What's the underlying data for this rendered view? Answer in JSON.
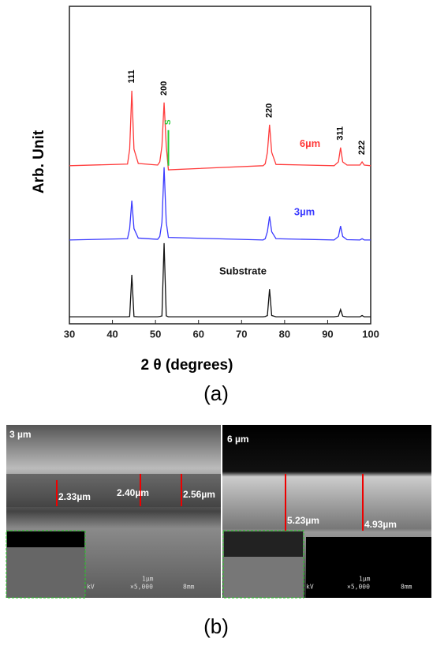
{
  "chart_data": {
    "type": "line",
    "x_label": "2 θ (degrees)",
    "y_label": "Arb. Unit",
    "panel_label": "(a)",
    "xlim": [
      30,
      100
    ],
    "xticks": [
      30,
      40,
      50,
      60,
      70,
      80,
      90,
      100
    ],
    "ylim": [
      0,
      100
    ],
    "x": [
      30,
      43.5,
      44,
      44.5,
      45,
      46,
      50.5,
      51,
      51.5,
      52,
      52.5,
      53,
      75,
      75.5,
      76,
      76.5,
      77,
      78,
      91.5,
      92.5,
      93,
      93.5,
      94.5,
      97.5,
      98,
      98.5,
      100
    ],
    "series": [
      {
        "name": "6µm",
        "color": "#ff3b3b",
        "values": [
          49.8,
          50.3,
          55,
          73.4,
          55,
          50.5,
          50,
          51,
          56,
          69.7,
          56,
          48.5,
          49.8,
          50.4,
          54,
          62.7,
          54,
          50.2,
          49.8,
          51,
          55.5,
          51,
          50,
          50,
          51,
          50,
          49.8
        ]
      },
      {
        "name": "3µm",
        "color": "#3a3aff",
        "values": [
          26.4,
          26.8,
          30,
          38.8,
          30,
          27,
          26.6,
          27.5,
          32,
          49.3,
          32,
          27.2,
          26.4,
          26.8,
          29,
          33.8,
          29,
          26.8,
          26.4,
          27.5,
          30.8,
          27.5,
          26.5,
          26.4,
          26.8,
          26.4,
          26.4
        ]
      },
      {
        "name": "Substrate",
        "color": "#111111",
        "values": [
          2.2,
          2.2,
          2.3,
          15.4,
          2.3,
          2.2,
          2.2,
          2.3,
          2.5,
          25.4,
          2.5,
          2.2,
          2.2,
          2.3,
          2.6,
          10.9,
          2.6,
          2.2,
          2.2,
          2.4,
          4.5,
          2.4,
          2.2,
          2.2,
          2.6,
          2.2,
          2.2
        ]
      }
    ],
    "peak_labels": [
      {
        "text": "111",
        "x": 44.5
      },
      {
        "text": "200",
        "x": 52
      },
      {
        "text": "220",
        "x": 76.5
      },
      {
        "text": "311",
        "x": 93
      },
      {
        "text": "222",
        "x": 98
      }
    ],
    "marker": {
      "text": "S",
      "x": 53,
      "color": "#22cc33"
    }
  },
  "figure_b": {
    "panel_label": "(b)",
    "left": {
      "title": "3 µm",
      "thickness": [
        "2.33µm",
        "2.40µm",
        "2.56µm"
      ],
      "scale": "1μm",
      "mag": "×5,000",
      "wd": "8mm",
      "kv": "kV"
    },
    "right": {
      "title": "6 µm",
      "thickness": [
        "5.23µm",
        "4.93µm"
      ],
      "scale": "1μm",
      "mag": "×5,000",
      "wd": "8mm",
      "kv": "kV"
    }
  }
}
